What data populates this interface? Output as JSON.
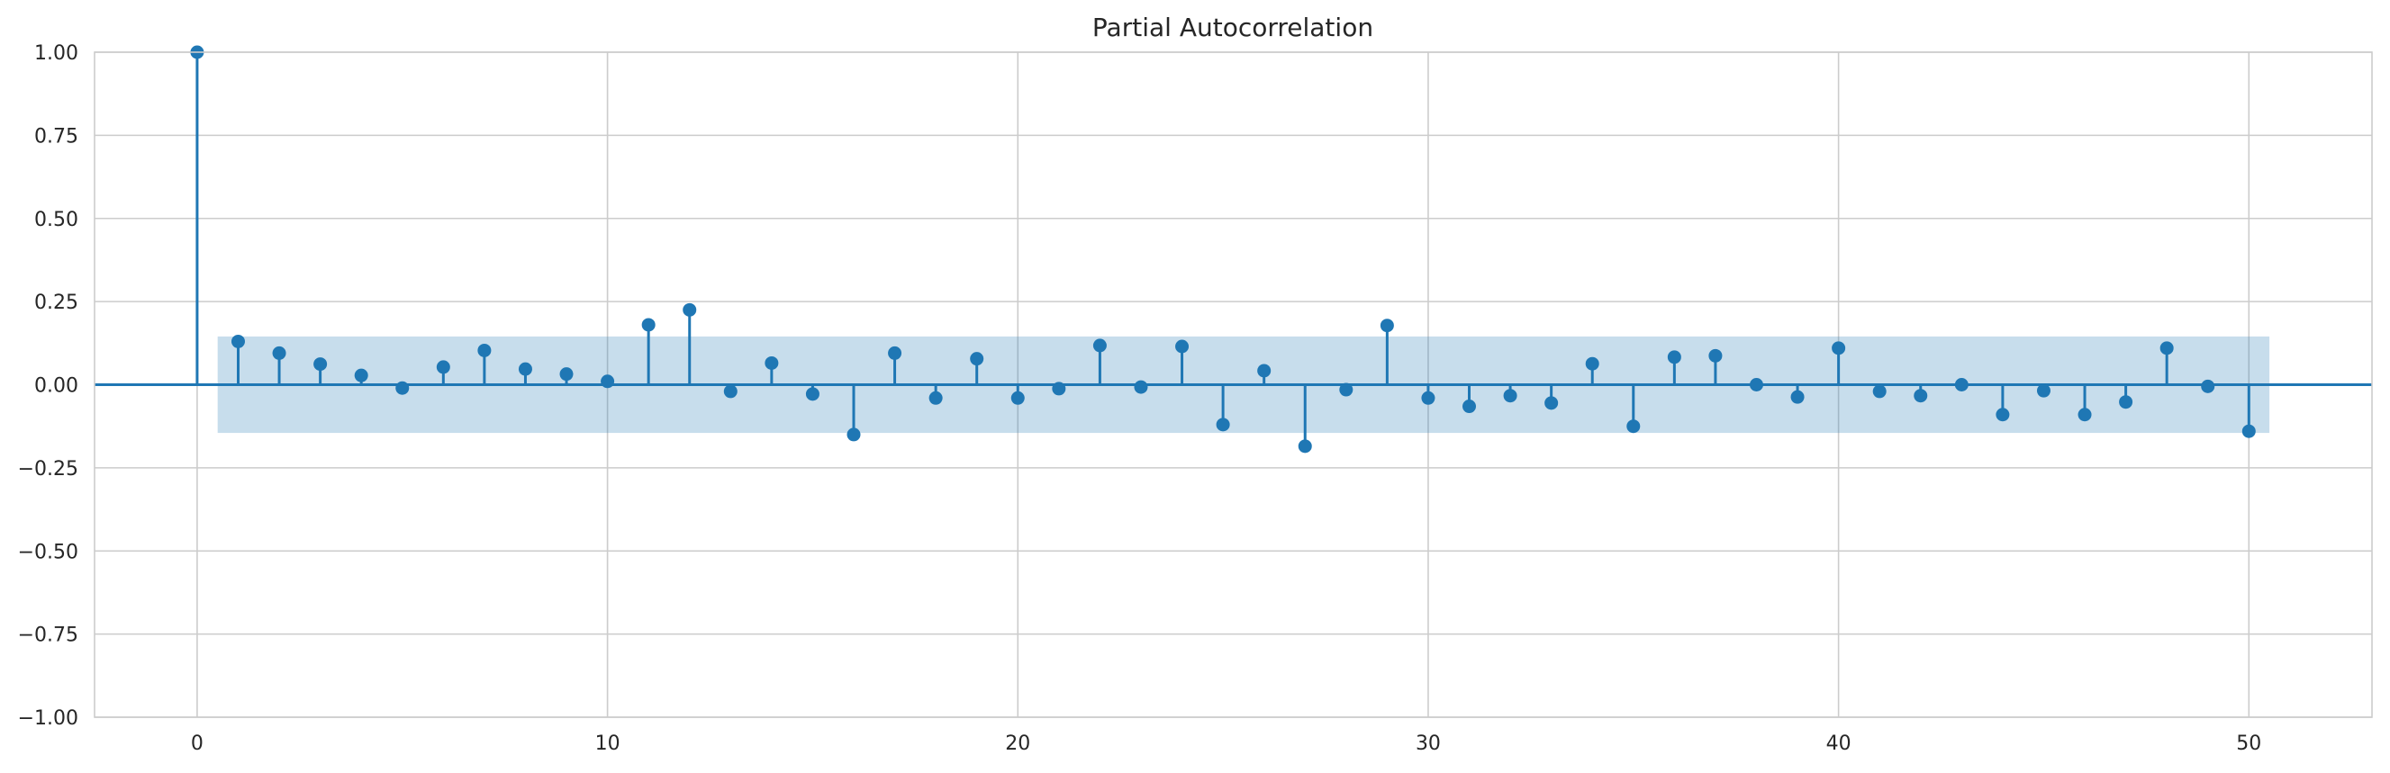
{
  "chart_data": {
    "type": "scatter",
    "title": "Partial Autocorrelation",
    "xlabel": "",
    "ylabel": "",
    "xlim": [
      -2.5,
      53
    ],
    "ylim": [
      -1.0,
      1.0
    ],
    "x_ticks": [
      0,
      10,
      20,
      30,
      40,
      50
    ],
    "y_ticks": [
      -1.0,
      -0.75,
      -0.5,
      -0.25,
      0.0,
      0.25,
      0.5,
      0.75,
      1.0
    ],
    "x_tick_labels": [
      "0",
      "10",
      "20",
      "30",
      "40",
      "50"
    ],
    "y_tick_labels": [
      "−1.00",
      "−0.75",
      "−0.50",
      "−0.25",
      "0.00",
      "0.25",
      "0.50",
      "0.75",
      "1.00"
    ],
    "grid": true,
    "confidence_band": {
      "x": [
        0.5,
        50.5
      ],
      "lower": -0.145,
      "upper": 0.145
    },
    "series": [
      {
        "lags": [
          0,
          1,
          2,
          3,
          4,
          5,
          6,
          7,
          8,
          9,
          10,
          11,
          12,
          13,
          14,
          15,
          16,
          17,
          18,
          19,
          20,
          21,
          22,
          23,
          24,
          25,
          26,
          27,
          28,
          29,
          30,
          31,
          32,
          33,
          34,
          35,
          36,
          37,
          38,
          39,
          40,
          41,
          42,
          43,
          44,
          45,
          46,
          47,
          48,
          49,
          50
        ],
        "values": [
          1.0,
          0.13,
          0.095,
          0.062,
          0.028,
          -0.01,
          0.053,
          0.103,
          0.047,
          0.032,
          0.01,
          0.18,
          0.225,
          -0.02,
          0.065,
          -0.028,
          -0.15,
          0.095,
          -0.04,
          0.078,
          -0.04,
          -0.012,
          0.118,
          -0.007,
          0.115,
          -0.12,
          0.042,
          -0.185,
          -0.015,
          0.178,
          -0.04,
          -0.065,
          -0.033,
          -0.055,
          0.063,
          -0.125,
          0.083,
          0.087,
          0.0,
          -0.037,
          0.11,
          -0.02,
          -0.033,
          0.0,
          -0.09,
          -0.018,
          -0.09,
          -0.052,
          0.11,
          -0.005,
          -0.14
        ]
      }
    ],
    "colors": {
      "stem": "#1f77b4",
      "band": "#1f77b4",
      "grid": "#cccccc",
      "axis": "#cccccc",
      "text": "#262626"
    }
  }
}
